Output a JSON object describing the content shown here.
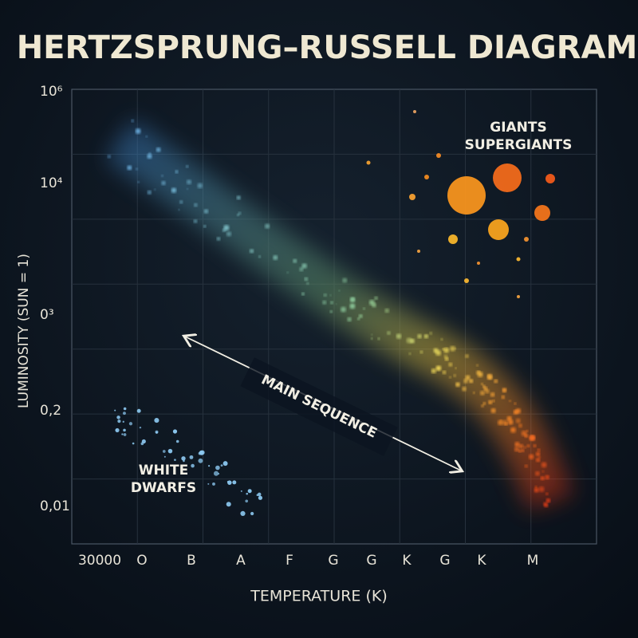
{
  "title": "HERTZSPRUNG–RUSSELL DIAGRAM",
  "y_axis": {
    "label": "LUMINOSITY (SUN = 1)",
    "ticks": [
      "10⁶",
      "10⁴",
      "0³",
      "0,2",
      "0,01"
    ]
  },
  "x_axis": {
    "label": "TEMPERATURE (K)",
    "ticks": [
      "30000",
      "O",
      "B",
      "A",
      "F",
      "G",
      "G",
      "K",
      "G",
      "K",
      "M"
    ]
  },
  "annotations": {
    "giants": [
      "GIANTS",
      "SUPERGIANTS"
    ],
    "main_sequence": "MAIN SEQUENCE",
    "white_dwarfs": [
      "WHITE",
      "DWARFS"
    ]
  }
}
